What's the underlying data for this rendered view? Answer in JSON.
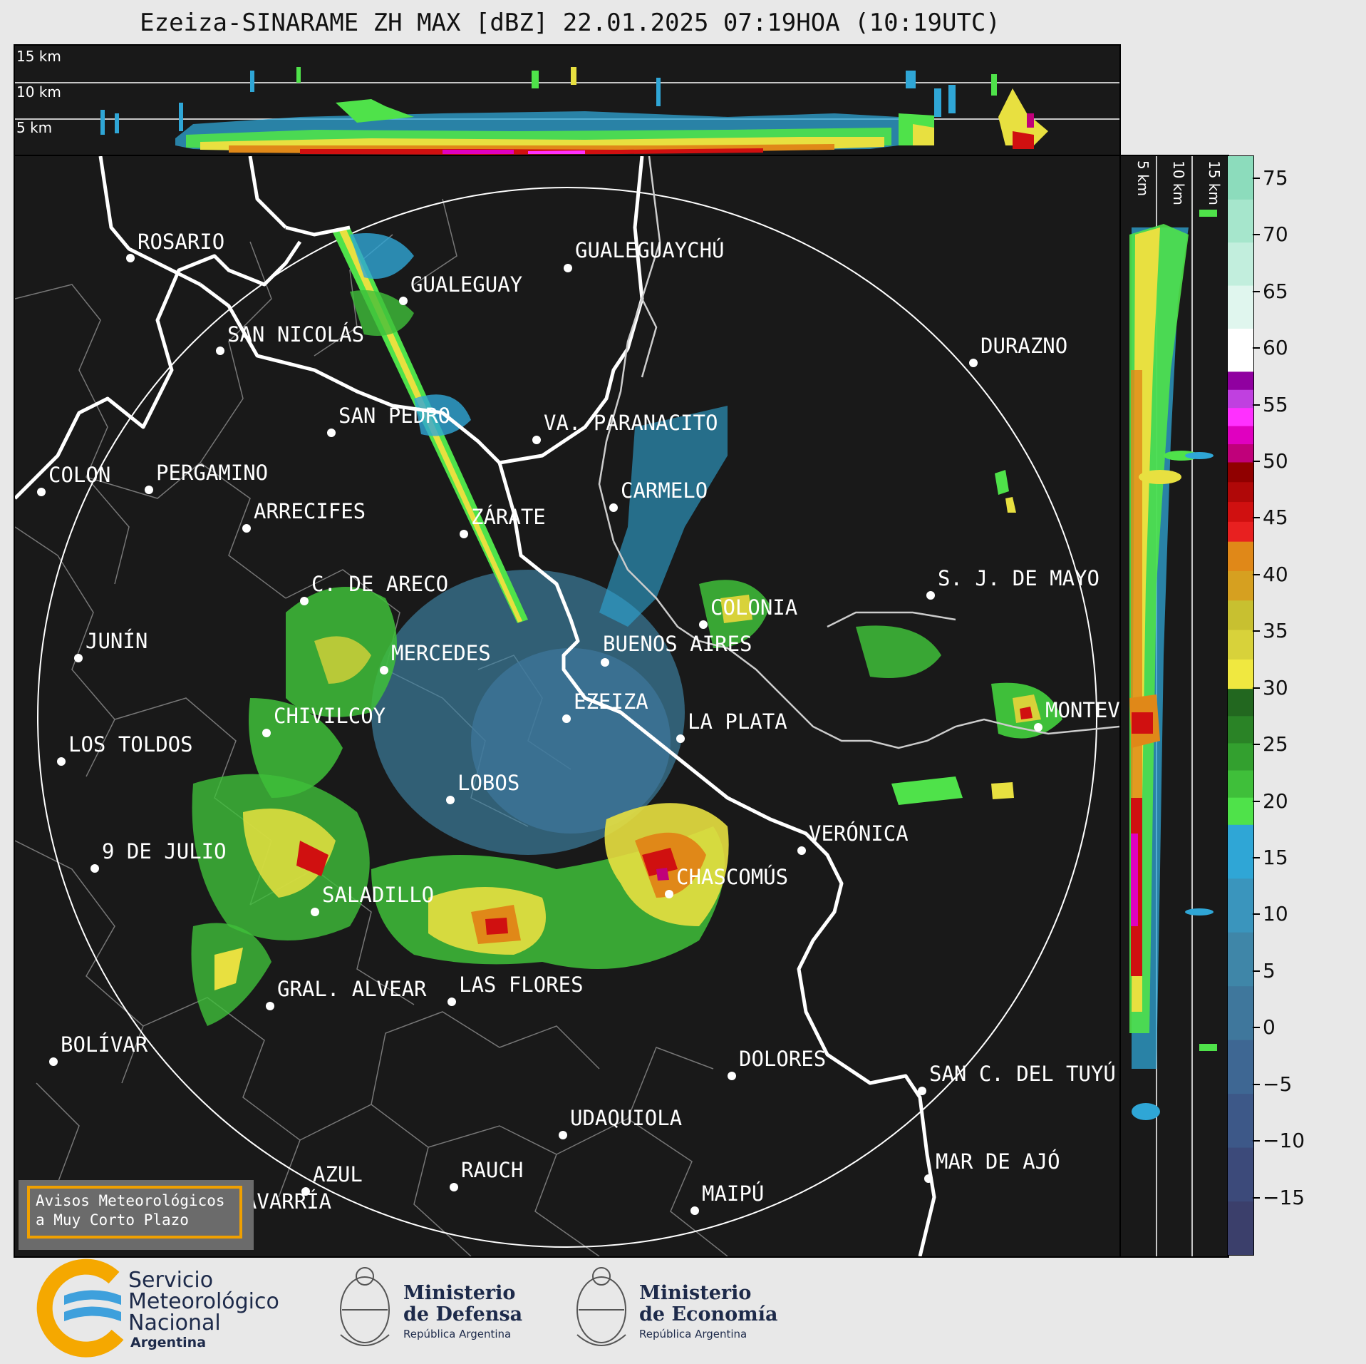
{
  "title": "Ezeiza-SINARAME ZH MAX [dBZ] 22.01.2025 07:19HOA (10:19UTC)",
  "top_strip": {
    "altitude_labels": [
      "15 km",
      "10 km",
      "5 km"
    ]
  },
  "side_strip": {
    "altitude_labels": [
      "5 km",
      "10 km",
      "15 km"
    ]
  },
  "cities": [
    {
      "name": "ROSARIO"
    },
    {
      "name": "GUALEGUAYCHÚ"
    },
    {
      "name": "GUALEGUAY"
    },
    {
      "name": "SAN NICOLÁS"
    },
    {
      "name": "DURAZNO"
    },
    {
      "name": "SAN PEDRO"
    },
    {
      "name": "VA. PARANACITO"
    },
    {
      "name": "COLON"
    },
    {
      "name": "PERGAMINO"
    },
    {
      "name": "CARMELO"
    },
    {
      "name": "ARRECIFES"
    },
    {
      "name": "ZÁRATE"
    },
    {
      "name": "S. J. DE MAYO"
    },
    {
      "name": "C. DE ARECO"
    },
    {
      "name": "COLONIA"
    },
    {
      "name": "JUNÍN"
    },
    {
      "name": "BUENOS AIRES"
    },
    {
      "name": "MERCEDES"
    },
    {
      "name": "EZEIZA"
    },
    {
      "name": "MONTEVIDEO"
    },
    {
      "name": "CHIVILCOY"
    },
    {
      "name": "LA PLATA"
    },
    {
      "name": "LOS TOLDOS"
    },
    {
      "name": "LOBOS"
    },
    {
      "name": "VERÓNICA"
    },
    {
      "name": "9 DE JULIO"
    },
    {
      "name": "CHASCOMÚS"
    },
    {
      "name": "SALADILLO"
    },
    {
      "name": "GRAL. ALVEAR"
    },
    {
      "name": "LAS FLORES"
    },
    {
      "name": "BOLÍVAR"
    },
    {
      "name": "DOLORES"
    },
    {
      "name": "SAN C. DEL TUYÚ"
    },
    {
      "name": "UDAQUIOLA"
    },
    {
      "name": "MAR DE AJÓ"
    },
    {
      "name": "AZUL"
    },
    {
      "name": "RAUCH"
    },
    {
      "name": "OLAVARRÍA"
    },
    {
      "name": "MAIPÚ"
    }
  ],
  "colorbar": {
    "unit": "dBZ",
    "range": [
      -20,
      77
    ],
    "ticks": [
      "75",
      "70",
      "65",
      "60",
      "55",
      "50",
      "45",
      "40",
      "35",
      "30",
      "25",
      "20",
      "15",
      "10",
      "5",
      "0",
      "−5",
      "−10",
      "−15"
    ],
    "colors": {
      "low": [
        "#3b3f6b",
        "#3c4a7a",
        "#3d5888",
        "#3e6793",
        "#3f779c",
        "#3f86a8",
        "#3a95bd",
        "#2fa6d6"
      ],
      "green": [
        "#4fe24a",
        "#3fbf3a",
        "#33a02f",
        "#2a8326",
        "#22671f"
      ],
      "yellow_orange": [
        "#f0e840",
        "#d8d23a",
        "#c8c030",
        "#d6a020",
        "#e08818"
      ],
      "red": [
        "#e82020",
        "#d01010",
        "#b00808",
        "#900000"
      ],
      "magenta": [
        "#c0007a",
        "#e000c0",
        "#ff30ff",
        "#c040e0",
        "#9000a0"
      ],
      "high": [
        "#ffffff",
        "#e0f6ee",
        "#c2eedd",
        "#a6e6cc",
        "#8cdcbc"
      ]
    }
  },
  "warning_box": {
    "line1": "Avisos Meteorológicos",
    "line2": "a Muy Corto Plazo"
  },
  "logos": {
    "smn": {
      "line1": "Servicio",
      "line2": "Meteorológico",
      "line3": "Nacional",
      "line4": "Argentina"
    },
    "defensa": {
      "line1": "Ministerio",
      "line2": "de Defensa",
      "line3": "República Argentina"
    },
    "economia": {
      "line1": "Ministerio",
      "line2": "de Economía",
      "line3": "República Argentina"
    }
  }
}
